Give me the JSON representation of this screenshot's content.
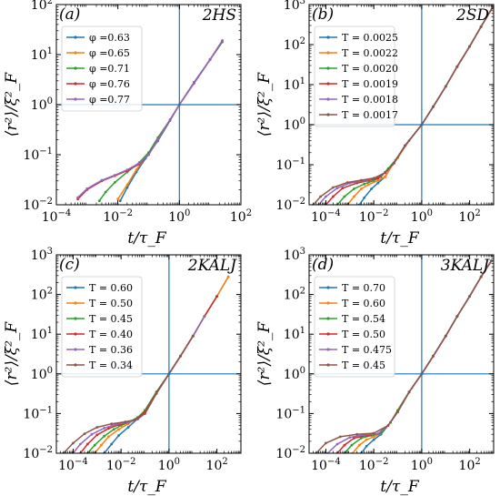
{
  "figure": {
    "ylabel": "⟨r²⟩/ξ²_F",
    "xlabel": "t/τ_F"
  },
  "chart_data": [
    {
      "id": "a",
      "type": "line",
      "tag": "(a)",
      "title": "2HS",
      "xscale": "log",
      "yscale": "log",
      "xlim": [
        0.0001,
        100
      ],
      "ylim": [
        0.01,
        100
      ],
      "xticks": [
        0.0001,
        0.01,
        1,
        100
      ],
      "xticklabels": [
        "10^-4",
        "10^-2",
        "10^0",
        "10^2"
      ],
      "yticks": [
        0.01,
        0.1,
        1,
        10,
        100
      ],
      "yticklabels": [
        "10^-2",
        "10^-1",
        "10^0",
        "10^1",
        "10^2"
      ],
      "reference_lines": {
        "x": 1,
        "y": 1
      },
      "legend_position": "top-left",
      "series": [
        {
          "name": "φ =0.63",
          "color": "#1f77b4",
          "x": [
            0.012,
            0.02,
            0.04,
            0.08,
            0.2,
            0.5,
            1,
            3,
            10,
            25
          ],
          "y": [
            0.012,
            0.022,
            0.045,
            0.085,
            0.19,
            0.48,
            1.0,
            2.8,
            8,
            18
          ]
        },
        {
          "name": "φ =0.65",
          "color": "#ff7f0e",
          "x": [
            0.01,
            0.02,
            0.04,
            0.08,
            0.2,
            0.5,
            1,
            3,
            10,
            25
          ],
          "y": [
            0.013,
            0.025,
            0.05,
            0.09,
            0.2,
            0.5,
            1.0,
            2.7,
            8,
            19
          ]
        },
        {
          "name": "φ =0.71",
          "color": "#2ca02c",
          "x": [
            0.0025,
            0.004,
            0.008,
            0.02,
            0.05,
            0.1,
            0.2,
            0.5,
            1,
            3,
            10,
            25
          ],
          "y": [
            0.012,
            0.018,
            0.028,
            0.045,
            0.07,
            0.11,
            0.22,
            0.5,
            1.0,
            2.7,
            8,
            18
          ]
        },
        {
          "name": "φ =0.76",
          "color": "#d62728",
          "x": [
            0.0005,
            0.001,
            0.003,
            0.008,
            0.02,
            0.05,
            0.1,
            0.2,
            0.5,
            1,
            3,
            10,
            25
          ],
          "y": [
            0.013,
            0.02,
            0.03,
            0.038,
            0.048,
            0.065,
            0.1,
            0.2,
            0.5,
            1.0,
            2.7,
            8,
            19
          ]
        },
        {
          "name": "φ =0.77",
          "color": "#9467bd",
          "x": [
            0.0005,
            0.001,
            0.003,
            0.008,
            0.02,
            0.05,
            0.1,
            0.2,
            0.5,
            1,
            3,
            10,
            25
          ],
          "y": [
            0.014,
            0.021,
            0.031,
            0.039,
            0.05,
            0.068,
            0.1,
            0.2,
            0.5,
            1.0,
            2.7,
            8,
            19
          ]
        }
      ]
    },
    {
      "id": "b",
      "type": "line",
      "tag": "(b)",
      "title": "2SD",
      "xscale": "log",
      "yscale": "log",
      "xlim": [
        2e-05,
        1000
      ],
      "ylim": [
        0.01,
        1000
      ],
      "xticks": [
        0.0001,
        0.01,
        1,
        100
      ],
      "xticklabels": [
        "10^-4",
        "10^-2",
        "10^0",
        "10^2"
      ],
      "yticks": [
        0.01,
        0.1,
        1,
        10,
        100,
        1000
      ],
      "yticklabels": [
        "10^-2",
        "10^-1",
        "10^0",
        "10^1",
        "10^2",
        "10^3"
      ],
      "reference_lines": {
        "x": 1,
        "y": 1
      },
      "legend_position": "top-left",
      "series": [
        {
          "name": "T = 0.0025",
          "color": "#1f77b4",
          "x": [
            0.0025,
            0.004,
            0.008,
            0.015,
            0.03,
            0.06,
            0.1,
            0.3,
            1,
            3,
            10,
            30,
            100,
            300,
            900
          ],
          "y": [
            0.01,
            0.015,
            0.025,
            0.035,
            0.05,
            0.1,
            0.15,
            0.4,
            1.0,
            2.8,
            9,
            28,
            90,
            280,
            850
          ]
        },
        {
          "name": "T = 0.0022",
          "color": "#ff7f0e",
          "x": [
            0.0008,
            0.0015,
            0.003,
            0.006,
            0.015,
            0.03,
            0.06,
            0.1,
            0.3,
            1,
            3,
            10,
            30,
            100,
            300,
            900
          ],
          "y": [
            0.01,
            0.016,
            0.025,
            0.032,
            0.04,
            0.05,
            0.1,
            0.15,
            0.4,
            1.0,
            2.8,
            9,
            28,
            90,
            280,
            850
          ]
        },
        {
          "name": "T = 0.0020",
          "color": "#2ca02c",
          "x": [
            0.0003,
            0.0006,
            0.0015,
            0.004,
            0.01,
            0.02,
            0.04,
            0.08,
            0.2,
            1,
            3,
            10,
            30,
            100,
            300,
            900
          ],
          "y": [
            0.01,
            0.016,
            0.025,
            0.033,
            0.04,
            0.05,
            0.08,
            0.13,
            0.3,
            1.0,
            2.8,
            9,
            28,
            90,
            280,
            850
          ]
        },
        {
          "name": "T = 0.0019",
          "color": "#d62728",
          "x": [
            0.0001,
            0.0002,
            0.0005,
            0.002,
            0.006,
            0.015,
            0.03,
            0.07,
            0.2,
            1,
            3,
            10,
            30,
            100,
            300,
            900
          ],
          "y": [
            0.01,
            0.016,
            0.026,
            0.035,
            0.04,
            0.046,
            0.065,
            0.11,
            0.3,
            1.0,
            2.8,
            9,
            28,
            90,
            280,
            850
          ]
        },
        {
          "name": "T = 0.0018",
          "color": "#9467bd",
          "x": [
            5e-05,
            0.0001,
            0.0003,
            0.001,
            0.004,
            0.01,
            0.03,
            0.07,
            0.2,
            1,
            3,
            10,
            30,
            100,
            300,
            900
          ],
          "y": [
            0.01,
            0.016,
            0.026,
            0.035,
            0.04,
            0.045,
            0.063,
            0.11,
            0.3,
            1.0,
            2.8,
            9,
            28,
            90,
            280,
            850
          ]
        },
        {
          "name": "T = 0.0017",
          "color": "#8c564b",
          "x": [
            3e-05,
            6e-05,
            0.0002,
            0.0008,
            0.003,
            0.01,
            0.03,
            0.07,
            0.2,
            1,
            3,
            10,
            30,
            100,
            300,
            900
          ],
          "y": [
            0.01,
            0.016,
            0.027,
            0.036,
            0.041,
            0.046,
            0.063,
            0.11,
            0.3,
            1.0,
            2.8,
            9,
            28,
            90,
            280,
            850
          ]
        }
      ]
    },
    {
      "id": "c",
      "type": "line",
      "tag": "(c)",
      "title": "2KALJ",
      "xscale": "log",
      "yscale": "log",
      "xlim": [
        2e-05,
        1000
      ],
      "ylim": [
        0.01,
        1000
      ],
      "xticks": [
        0.0001,
        0.01,
        1,
        100
      ],
      "xticklabels": [
        "10^-4",
        "10^-2",
        "10^0",
        "10^2"
      ],
      "yticks": [
        0.01,
        0.1,
        1,
        10,
        100,
        1000
      ],
      "yticklabels": [
        "10^-2",
        "10^-1",
        "10^0",
        "10^1",
        "10^2",
        "10^3"
      ],
      "reference_lines": {
        "x": 1,
        "y": 1
      },
      "legend_position": "top-left",
      "series": [
        {
          "name": "T = 0.60",
          "color": "#1f77b4",
          "x": [
            0.002,
            0.004,
            0.008,
            0.02,
            0.05,
            0.1,
            0.3,
            1,
            3,
            10,
            30,
            100,
            300
          ],
          "y": [
            0.01,
            0.017,
            0.028,
            0.045,
            0.075,
            0.12,
            0.35,
            1.0,
            2.8,
            9,
            28,
            90,
            280
          ]
        },
        {
          "name": "T = 0.50",
          "color": "#ff7f0e",
          "x": [
            0.0008,
            0.0015,
            0.003,
            0.008,
            0.02,
            0.05,
            0.1,
            0.3,
            1,
            3,
            10,
            30,
            100,
            300
          ],
          "y": [
            0.01,
            0.016,
            0.026,
            0.04,
            0.055,
            0.08,
            0.12,
            0.35,
            1.0,
            2.8,
            9,
            28,
            90,
            280
          ]
        },
        {
          "name": "T = 0.45",
          "color": "#2ca02c",
          "x": [
            0.0004,
            0.0008,
            0.002,
            0.005,
            0.01,
            0.02,
            0.05,
            0.1,
            0.3,
            1,
            3,
            10,
            30,
            100
          ],
          "y": [
            0.01,
            0.016,
            0.027,
            0.04,
            0.05,
            0.06,
            0.08,
            0.12,
            0.35,
            1.0,
            2.8,
            9,
            28,
            90
          ]
        },
        {
          "name": "T = 0.40",
          "color": "#d62728",
          "x": [
            0.0002,
            0.0004,
            0.001,
            0.003,
            0.008,
            0.02,
            0.05,
            0.1,
            0.3,
            1,
            3,
            10,
            30,
            100
          ],
          "y": [
            0.01,
            0.017,
            0.029,
            0.042,
            0.052,
            0.06,
            0.075,
            0.11,
            0.33,
            1.0,
            2.8,
            9,
            28,
            90
          ]
        },
        {
          "name": "T = 0.36",
          "color": "#9467bd",
          "x": [
            0.0001,
            0.0002,
            0.0006,
            0.002,
            0.006,
            0.02,
            0.05,
            0.1,
            0.3,
            1,
            3,
            10,
            30
          ],
          "y": [
            0.01,
            0.017,
            0.03,
            0.043,
            0.053,
            0.06,
            0.072,
            0.1,
            0.32,
            1.0,
            2.8,
            9,
            28
          ]
        },
        {
          "name": "T = 0.34",
          "color": "#8c564b",
          "x": [
            4e-05,
            0.0001,
            0.0003,
            0.001,
            0.004,
            0.015,
            0.04,
            0.1,
            0.3,
            1,
            3,
            10
          ],
          "y": [
            0.01,
            0.018,
            0.031,
            0.045,
            0.055,
            0.062,
            0.07,
            0.1,
            0.32,
            1.0,
            2.8,
            9
          ]
        }
      ]
    },
    {
      "id": "d",
      "type": "line",
      "tag": "(d)",
      "title": "3KALJ",
      "xscale": "log",
      "yscale": "log",
      "xlim": [
        2e-05,
        1000
      ],
      "ylim": [
        0.01,
        1000
      ],
      "xticks": [
        0.0001,
        0.01,
        1,
        100
      ],
      "xticklabels": [
        "10^-4",
        "10^-2",
        "10^0",
        "10^2"
      ],
      "yticks": [
        0.01,
        0.1,
        1,
        10,
        100,
        1000
      ],
      "yticklabels": [
        "10^-2",
        "10^-1",
        "10^0",
        "10^1",
        "10^2",
        "10^3"
      ],
      "reference_lines": {
        "x": 1,
        "y": 1
      },
      "legend_position": "top-left",
      "series": [
        {
          "name": "T = 0.70",
          "color": "#1f77b4",
          "x": [
            0.003,
            0.005,
            0.01,
            0.02,
            0.05,
            0.1,
            0.3,
            1,
            3,
            10,
            30,
            100,
            300,
            800
          ],
          "y": [
            0.01,
            0.015,
            0.022,
            0.03,
            0.06,
            0.12,
            0.35,
            1.0,
            2.8,
            9,
            28,
            90,
            280,
            700
          ]
        },
        {
          "name": "T = 0.60",
          "color": "#ff7f0e",
          "x": [
            0.0013,
            0.0025,
            0.005,
            0.01,
            0.02,
            0.05,
            0.1,
            0.3,
            1,
            3,
            10,
            30,
            100,
            300,
            800
          ],
          "y": [
            0.01,
            0.016,
            0.022,
            0.026,
            0.032,
            0.06,
            0.12,
            0.35,
            1.0,
            2.8,
            9,
            28,
            90,
            280,
            700
          ]
        },
        {
          "name": "T = 0.54",
          "color": "#2ca02c",
          "x": [
            0.0006,
            0.0012,
            0.003,
            0.008,
            0.02,
            0.05,
            0.1,
            0.3,
            1,
            3,
            10,
            30,
            100,
            300,
            800
          ],
          "y": [
            0.01,
            0.016,
            0.024,
            0.028,
            0.032,
            0.06,
            0.12,
            0.35,
            1.0,
            2.8,
            9,
            28,
            90,
            280,
            700
          ]
        },
        {
          "name": "T = 0.50",
          "color": "#d62728",
          "x": [
            0.0003,
            0.0006,
            0.0015,
            0.005,
            0.015,
            0.04,
            0.1,
            0.3,
            1,
            3,
            10,
            30,
            100,
            300,
            800
          ],
          "y": [
            0.01,
            0.016,
            0.024,
            0.028,
            0.031,
            0.05,
            0.11,
            0.35,
            1.0,
            2.8,
            9,
            28,
            90,
            280,
            700
          ]
        },
        {
          "name": "T = 0.475",
          "color": "#9467bd",
          "x": [
            0.00012,
            0.0003,
            0.001,
            0.004,
            0.015,
            0.04,
            0.1,
            0.3,
            1,
            3,
            10,
            30,
            100,
            300,
            800
          ],
          "y": [
            0.01,
            0.017,
            0.025,
            0.029,
            0.031,
            0.05,
            0.11,
            0.35,
            1.0,
            2.8,
            9,
            28,
            90,
            280,
            700
          ]
        },
        {
          "name": "T = 0.45",
          "color": "#8c564b",
          "x": [
            4e-05,
            0.0001,
            0.0004,
            0.002,
            0.01,
            0.04,
            0.1,
            0.3,
            1,
            3,
            10,
            30,
            100,
            300,
            800
          ],
          "y": [
            0.01,
            0.018,
            0.026,
            0.03,
            0.032,
            0.05,
            0.11,
            0.35,
            1.0,
            2.8,
            9,
            28,
            90,
            280,
            700
          ]
        }
      ]
    }
  ]
}
